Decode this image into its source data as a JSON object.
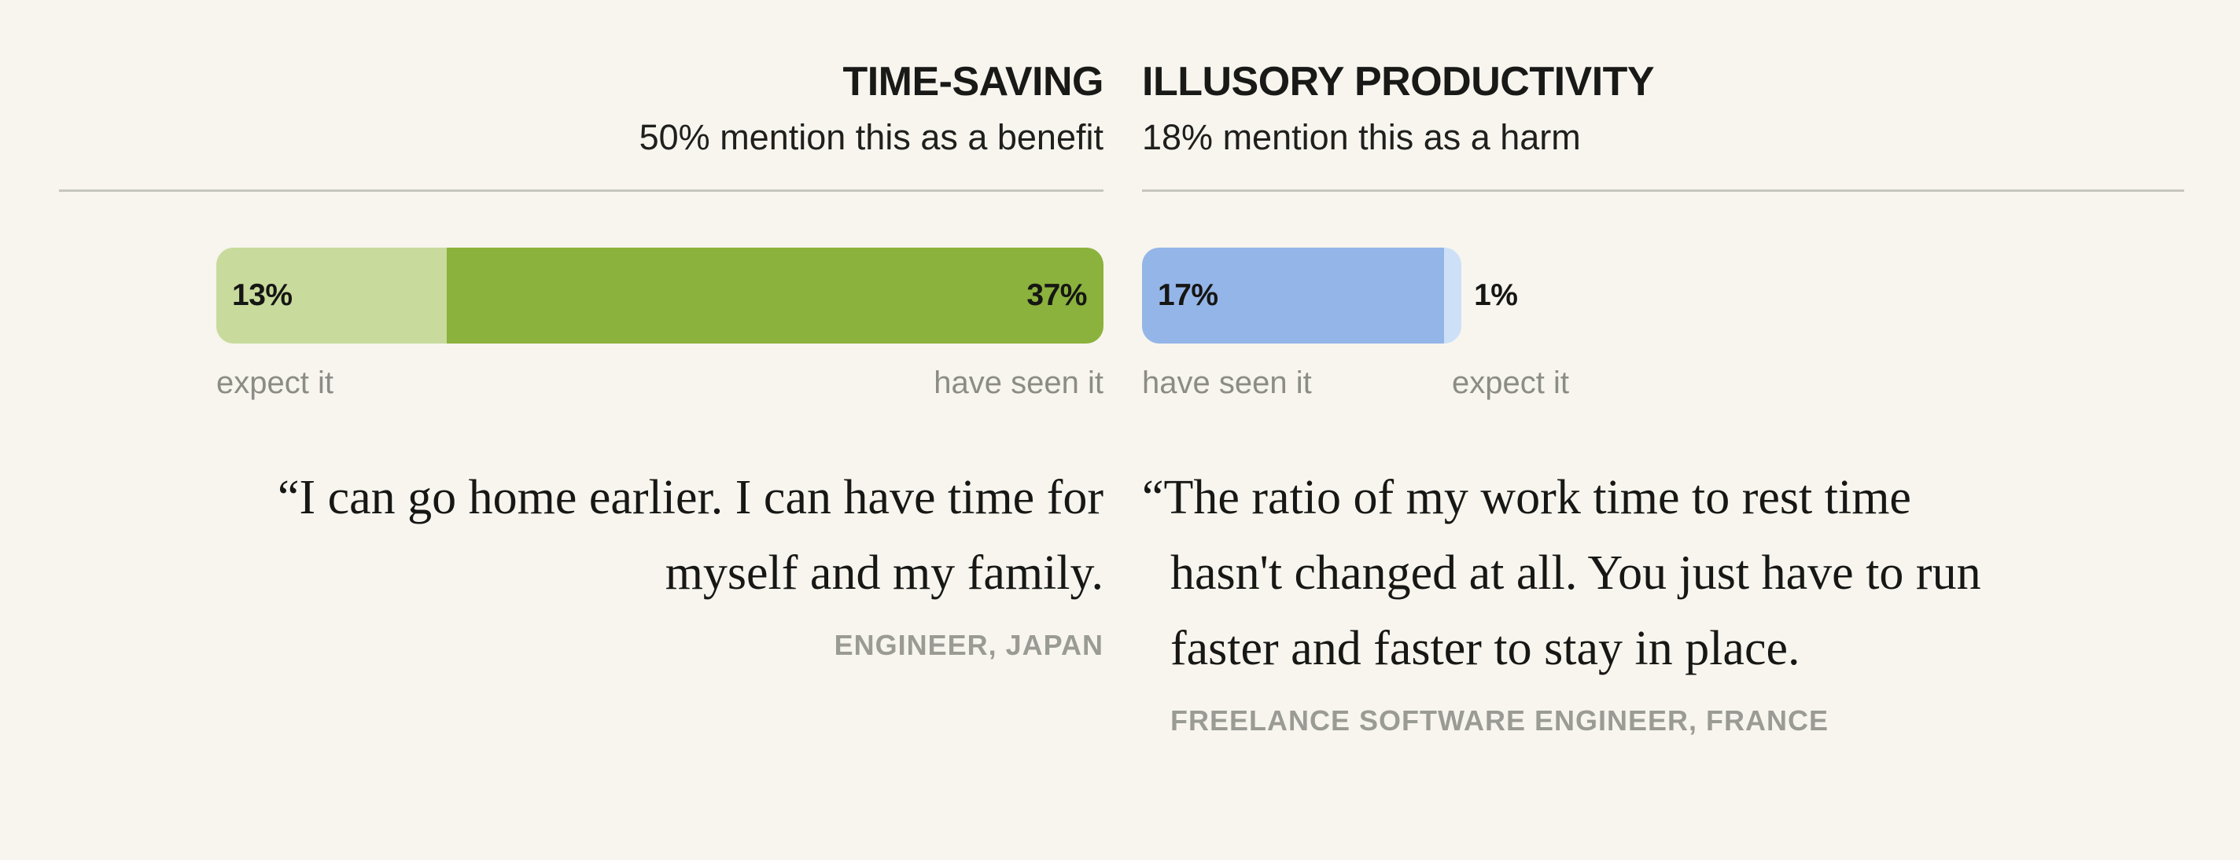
{
  "panels": [
    {
      "title": "TIME-SAVING",
      "subtitle": "50% mention this as a benefit",
      "bar": {
        "segments": [
          {
            "label": "13%",
            "category": "expect it"
          },
          {
            "label": "37%",
            "category": "have seen it"
          }
        ]
      },
      "axis_labels": {
        "left": "expect it",
        "right": "have seen it"
      },
      "quote": "“I can go home earlier. I can have time for\nmyself and my family.",
      "attribution": "ENGINEER, JAPAN"
    },
    {
      "title": "ILLUSORY PRODUCTIVITY",
      "subtitle": "18% mention this as a harm",
      "bar": {
        "segments": [
          {
            "label": "17%",
            "category": "have seen it"
          },
          {
            "label": "1%",
            "category": "expect it"
          }
        ]
      },
      "axis_labels": {
        "left": "have seen it",
        "right": "expect it"
      },
      "quote": "“The ratio of my work time to rest time\nhasn't changed at all. You just have to run\nfaster and faster to stay in place.",
      "attribution": "FREELANCE SOFTWARE ENGINEER, FRANCE"
    }
  ],
  "chart_data": [
    {
      "type": "bar",
      "orientation": "horizontal-stacked",
      "title": "TIME-SAVING",
      "subtitle": "50% mention this as a benefit",
      "categories": [
        "expect it",
        "have seen it"
      ],
      "values": [
        13,
        37
      ],
      "value_labels": [
        "13%",
        "37%"
      ],
      "unit": "%",
      "scale_max": 50,
      "colors": [
        "#C8DB9D",
        "#8BB23D"
      ],
      "value_label_color": "#161614",
      "annotation_quote": "“I can go home earlier. I can have time for myself and my family.",
      "annotation_source": "ENGINEER, JAPAN"
    },
    {
      "type": "bar",
      "orientation": "horizontal-stacked",
      "title": "ILLUSORY PRODUCTIVITY",
      "subtitle": "18% mention this as a harm",
      "categories": [
        "have seen it",
        "expect it"
      ],
      "values": [
        17,
        1
      ],
      "value_labels": [
        "17%",
        "1%"
      ],
      "unit": "%",
      "scale_max": 50,
      "colors": [
        "#94B5E8",
        "#CDE0F8"
      ],
      "value_label_color": "#161614",
      "annotation_quote": "“The ratio of my work time to rest time hasn't changed at all. You just have to run faster and faster to stay in place.",
      "annotation_source": "FREELANCE SOFTWARE ENGINEER, FRANCE"
    }
  ]
}
